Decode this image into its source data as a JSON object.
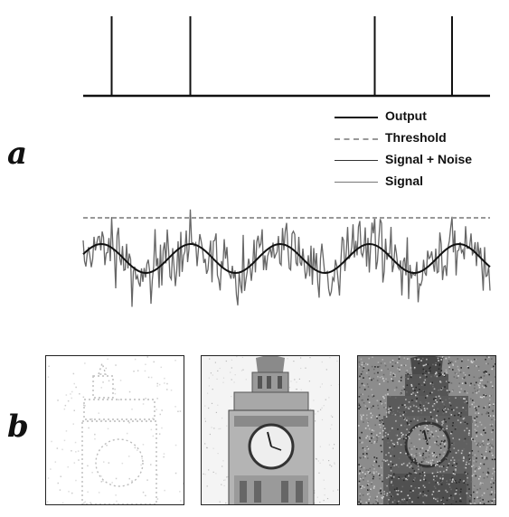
{
  "panels": {
    "a": "a",
    "b": "b"
  },
  "legend": [
    {
      "label": "Output",
      "style": "solid-thick",
      "color": "#111111"
    },
    {
      "label": "Threshold",
      "style": "dashed",
      "color": "#999999"
    },
    {
      "label": "Signal + Noise",
      "style": "solid-thin",
      "color": "#333333"
    },
    {
      "label": "Signal",
      "style": "solid-mid",
      "color": "#777777"
    }
  ],
  "colors": {
    "spike": "#111111",
    "threshold": "#999999",
    "noise": "#666666",
    "signal": "#111111"
  },
  "images": [
    {
      "name": "tower-below-optimal-noise",
      "tone": "light"
    },
    {
      "name": "tower-optimal-noise",
      "tone": "mid"
    },
    {
      "name": "tower-excess-noise",
      "tone": "dark"
    }
  ]
}
